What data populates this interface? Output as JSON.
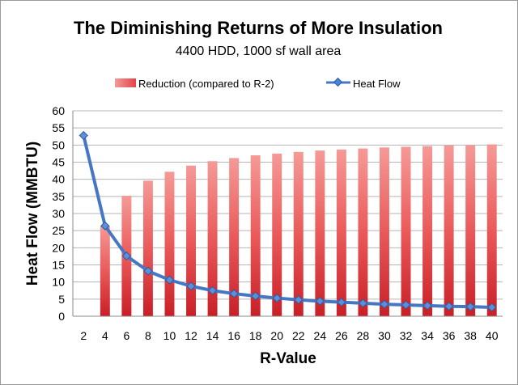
{
  "chart_data": {
    "type": "bar+line",
    "title": "The Diminishing Returns of More Insulation",
    "subtitle": "4400 HDD, 1000 sf wall area",
    "xlabel": "R-Value",
    "ylabel": "Heat Flow (MMBTU)",
    "ylim": [
      0,
      60
    ],
    "yticks": [
      "0",
      "5",
      "10",
      "15",
      "20",
      "25",
      "30",
      "35",
      "40",
      "45",
      "50",
      "55",
      "60"
    ],
    "grid": true,
    "legend_position": "top",
    "categories": [
      "2",
      "4",
      "6",
      "8",
      "10",
      "12",
      "14",
      "16",
      "18",
      "20",
      "22",
      "24",
      "26",
      "28",
      "30",
      "32",
      "34",
      "36",
      "38",
      "40"
    ],
    "series": [
      {
        "name": "Reduction (compared to R-2)",
        "kind": "bar",
        "color": "#e8474b",
        "values": [
          0,
          26.4,
          35.2,
          39.6,
          42.2,
          44.0,
          45.3,
          46.2,
          47.0,
          47.5,
          48.0,
          48.4,
          48.7,
          49.0,
          49.3,
          49.5,
          49.7,
          49.9,
          50.0,
          50.2
        ]
      },
      {
        "name": "Heat Flow",
        "kind": "line",
        "color": "#4677c5",
        "values": [
          52.8,
          26.4,
          17.6,
          13.2,
          10.6,
          8.8,
          7.5,
          6.6,
          5.9,
          5.3,
          4.8,
          4.4,
          4.1,
          3.8,
          3.5,
          3.3,
          3.1,
          2.9,
          2.8,
          2.6
        ]
      }
    ]
  }
}
